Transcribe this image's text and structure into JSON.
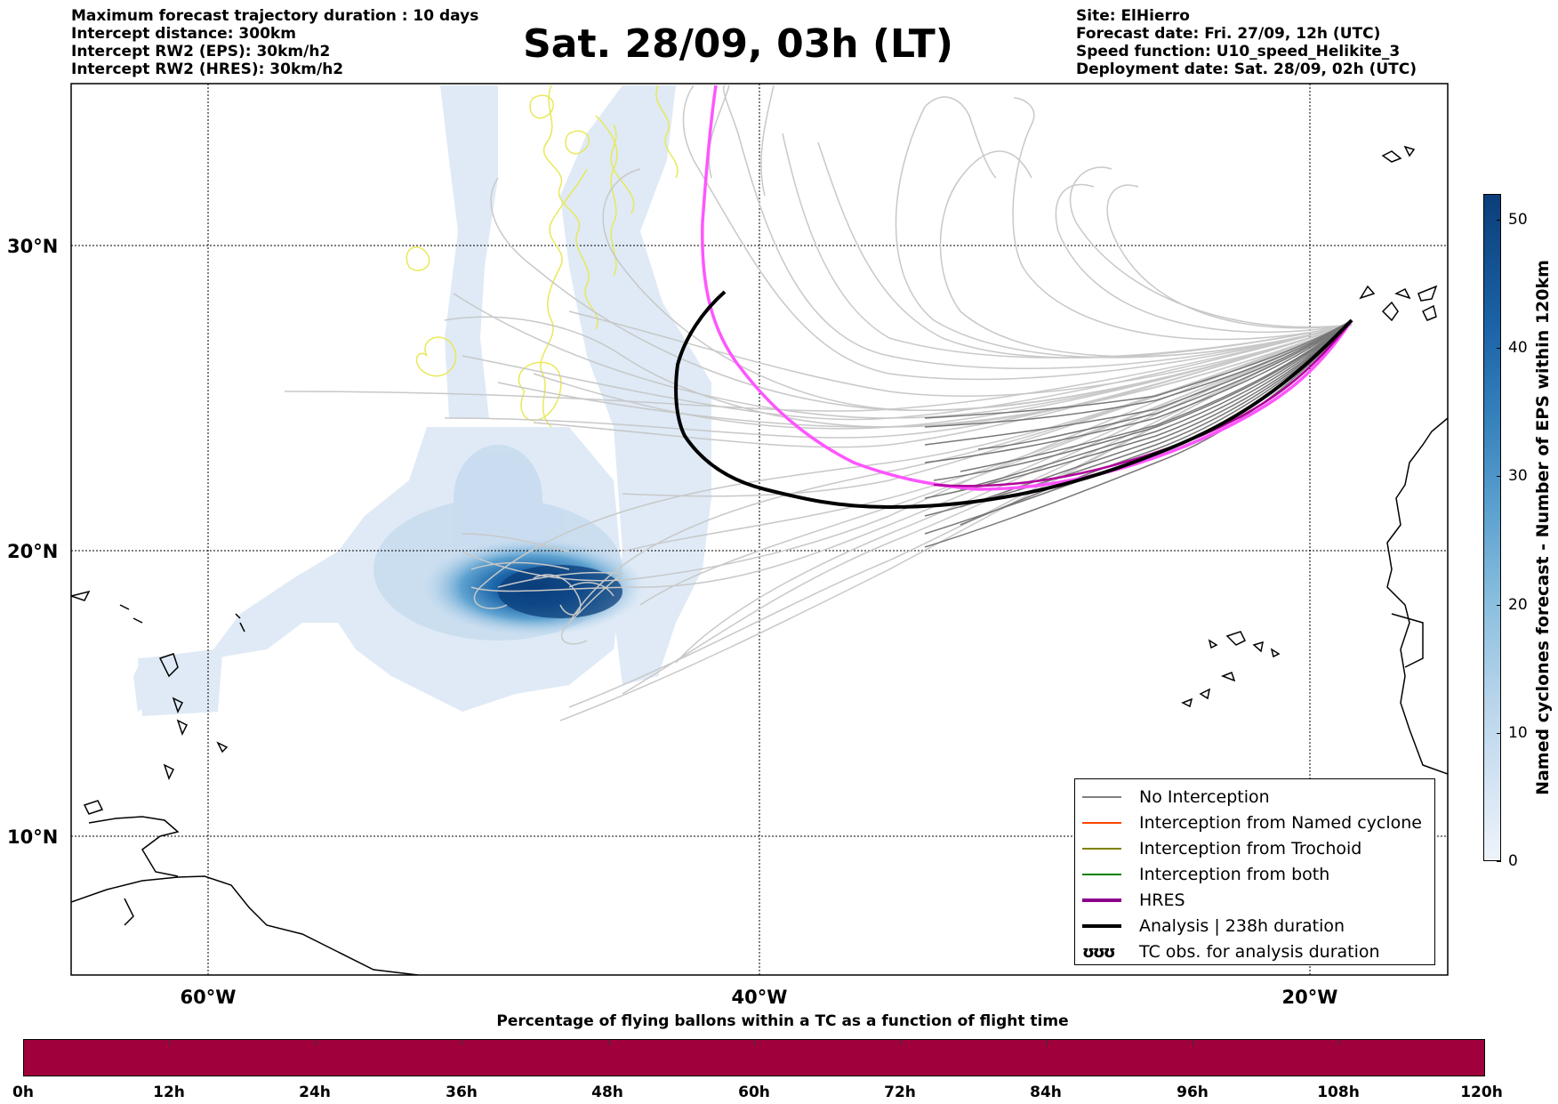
{
  "header": {
    "left_lines": [
      "Maximum forecast trajectory duration : 10 days",
      "Intercept distance: 300km",
      "Intercept RW2 (EPS):  30km/h2",
      "Intercept RW2 (HRES): 30km/h2"
    ],
    "title": "Sat. 28/09, 03h (LT)",
    "right_lines": [
      "Site: ElHierro",
      "Forecast date: Fri. 27/09, 12h (UTC)",
      "Speed function: U10_speed_Helikite_3",
      "Deployment date: Sat. 28/09, 02h (UTC)"
    ]
  },
  "map": {
    "lat_labels": [
      "30°N",
      "20°N",
      "10°N"
    ],
    "lon_labels": [
      "60°W",
      "40°W",
      "20°W"
    ],
    "colors": {
      "no_interception": "#808080",
      "named_cyclone": "#ff4500",
      "trochoid": "#808000",
      "both": "#008000",
      "hres": "#ff55ff",
      "hres_legend": "#8b008b",
      "analysis": "#000000",
      "tc_obs": "#e8e85a",
      "cyclone_density": "#0b3e7a"
    }
  },
  "legend": {
    "items": [
      {
        "label": "No Interception",
        "color": "#808080",
        "style": "thin"
      },
      {
        "label": "Interception from Named cyclone",
        "color": "#ff4500",
        "style": "thin"
      },
      {
        "label": "Interception from Trochoid",
        "color": "#808000",
        "style": "thin"
      },
      {
        "label": "Interception from both",
        "color": "#008000",
        "style": "thin"
      },
      {
        "label": "HRES",
        "color": "#8b008b",
        "style": "thick"
      },
      {
        "label": "Analysis | 238h duration",
        "color": "#000000",
        "style": "thick"
      },
      {
        "label": "TC obs. for analysis duration",
        "color": "#000000",
        "style": "symbol",
        "symbol": "ʊʊʊ"
      }
    ]
  },
  "colorbar": {
    "title": "Named cyclones forecast - Number of EPS within 120km",
    "ticks": [
      "0",
      "10",
      "20",
      "30",
      "40",
      "50"
    ]
  },
  "time_axis": {
    "title": "Percentage of flying ballons within a TC as a function of flight time",
    "labels": [
      "0h",
      "12h",
      "24h",
      "36h",
      "48h",
      "60h",
      "72h",
      "84h",
      "96h",
      "108h",
      "120h"
    ],
    "fill_color": "#a0003c"
  }
}
